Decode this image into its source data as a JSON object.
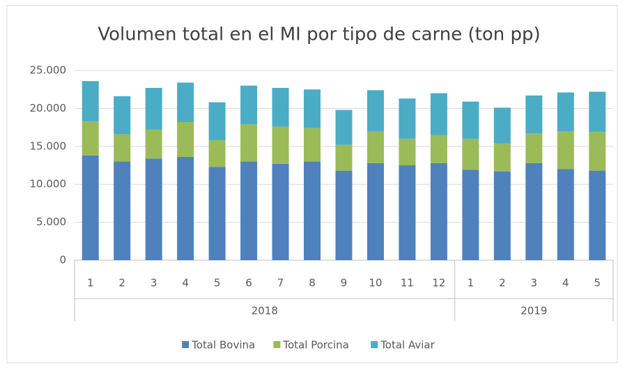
{
  "chart_data": {
    "type": "stacked_bar",
    "title": "Volumen total en el MI por tipo de carne (ton pp)",
    "groups": [
      {
        "name": "2018",
        "categories": [
          "1",
          "2",
          "3",
          "4",
          "5",
          "6",
          "7",
          "8",
          "9",
          "10",
          "11",
          "12"
        ]
      },
      {
        "name": "2019",
        "categories": [
          "1",
          "2",
          "3",
          "4",
          "5"
        ]
      }
    ],
    "series": [
      {
        "name": "Total Bovina",
        "color": "#4f81bd",
        "values": [
          13800,
          13000,
          13400,
          13600,
          12300,
          13000,
          12700,
          13000,
          11800,
          12800,
          12500,
          12800,
          11900,
          11700,
          12800,
          12000,
          11800
        ]
      },
      {
        "name": "Total Porcina",
        "color": "#9bbb59",
        "values": [
          4500,
          3600,
          3800,
          4600,
          3500,
          4900,
          4900,
          4400,
          3400,
          4200,
          3500,
          3700,
          4100,
          3700,
          3900,
          5000,
          5100
        ]
      },
      {
        "name": "Total Aviar",
        "color": "#4bacc6",
        "values": [
          5300,
          5000,
          5500,
          5200,
          5000,
          5100,
          5100,
          5100,
          4600,
          5400,
          5300,
          5500,
          4900,
          4700,
          5000,
          5100,
          5300
        ]
      }
    ],
    "ylim": [
      0,
      25000
    ],
    "yticks": [
      0,
      {
        "value": 5000,
        "label": "5.000"
      },
      {
        "value": 10000,
        "label": "10.000"
      },
      {
        "value": 15000,
        "label": "15.000"
      },
      {
        "value": 20000,
        "label": "20.000"
      },
      {
        "value": 25000,
        "label": "25.000"
      }
    ],
    "grid": true,
    "legend": "bottom"
  }
}
